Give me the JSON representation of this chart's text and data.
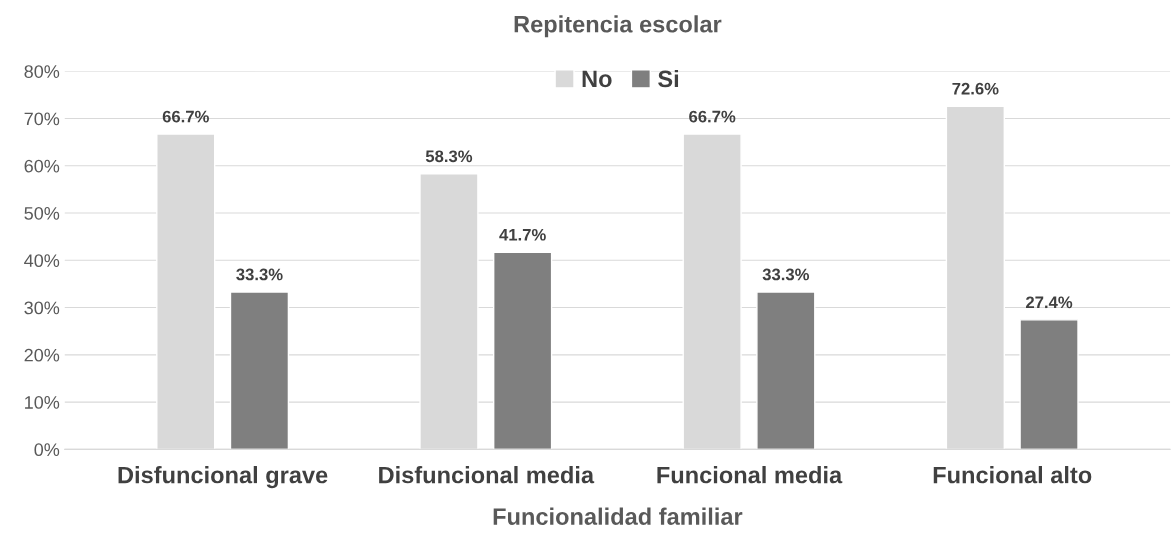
{
  "chart_data": {
    "type": "bar",
    "title": "Repitencia escolar",
    "xlabel": "Funcionalidad familiar",
    "categories": [
      "Disfuncional grave",
      "Disfuncional media",
      "Funcional media",
      "Funcional alto"
    ],
    "series": [
      {
        "name": "No",
        "color": "#d9d9d9",
        "values": [
          66.7,
          58.3,
          66.7,
          72.6
        ],
        "value_labels": [
          "66.7%",
          "58.3%",
          "66.7%",
          "72.6%"
        ]
      },
      {
        "name": "Si",
        "color": "#7f7f7f",
        "values": [
          33.3,
          41.7,
          33.3,
          27.4
        ],
        "value_labels": [
          "33.3%",
          "41.7%",
          "33.3%",
          "27.4%"
        ]
      }
    ],
    "ylim": [
      0,
      80
    ],
    "yticks": [
      {
        "value": 0,
        "label": "0%"
      },
      {
        "value": 10,
        "label": "10%"
      },
      {
        "value": 20,
        "label": "20%"
      },
      {
        "value": 30,
        "label": "30%"
      },
      {
        "value": 40,
        "label": "40%"
      },
      {
        "value": 50,
        "label": "50%"
      },
      {
        "value": 60,
        "label": "60%"
      },
      {
        "value": 70,
        "label": "70%"
      },
      {
        "value": 80,
        "label": "80%"
      }
    ],
    "grid": "y",
    "legend": "top"
  }
}
